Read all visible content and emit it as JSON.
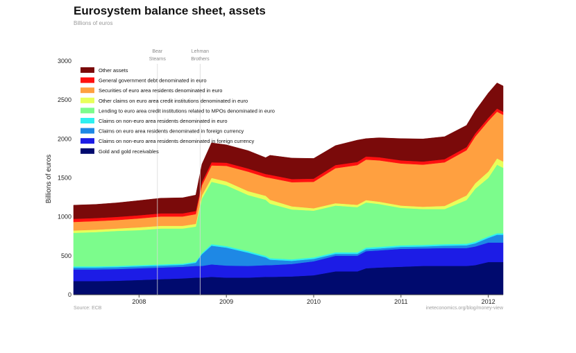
{
  "title": "Eurosystem balance sheet, assets",
  "subtitle": "Billions of euros",
  "source": "Source: ECB",
  "credit": "ineteconomics.org/blog/money-view",
  "chart_data": {
    "type": "area",
    "stacked": true,
    "ylabel": "Billions of euros",
    "ylim": [
      0,
      3000
    ],
    "yticks": [
      0,
      500,
      1000,
      1500,
      2000,
      2500,
      3000
    ],
    "xlim": [
      2007.25,
      2012.17
    ],
    "xticks": [
      2008,
      2009,
      2010,
      2011,
      2012
    ],
    "xtick_labels": [
      "2008",
      "2009",
      "2010",
      "2011",
      "2012"
    ],
    "legend_position": "top-left",
    "annotations": [
      {
        "text": [
          "Bear",
          "Stearns"
        ],
        "x": 2008.21
      },
      {
        "text": [
          "Lehman",
          "Brothers"
        ],
        "x": 2008.7
      }
    ],
    "x": [
      2007.25,
      2007.5,
      2007.75,
      2008.0,
      2008.25,
      2008.5,
      2008.65,
      2008.72,
      2008.83,
      2009.0,
      2009.25,
      2009.45,
      2009.5,
      2009.75,
      2010.0,
      2010.25,
      2010.5,
      2010.6,
      2010.75,
      2011.0,
      2011.25,
      2011.5,
      2011.75,
      2011.85,
      2012.0,
      2012.1,
      2012.17
    ],
    "series": [
      {
        "name": "Gold and gold receivables",
        "color": "#000a6e",
        "values": [
          175,
          175,
          180,
          190,
          200,
          210,
          220,
          220,
          230,
          220,
          220,
          230,
          230,
          235,
          250,
          300,
          300,
          340,
          350,
          360,
          370,
          370,
          370,
          380,
          420,
          420,
          420
        ]
      },
      {
        "name": "Claims on non-euro area residents denominated in foreign currency",
        "color": "#1c1ce6",
        "values": [
          150,
          150,
          150,
          150,
          150,
          150,
          150,
          150,
          160,
          155,
          150,
          150,
          150,
          160,
          180,
          200,
          200,
          220,
          220,
          230,
          225,
          230,
          230,
          240,
          250,
          250,
          250
        ]
      },
      {
        "name": "Claims on euro area residents denominated in foreign currency",
        "color": "#1e88e5",
        "values": [
          25,
          25,
          25,
          25,
          25,
          25,
          40,
          150,
          240,
          230,
          170,
          100,
          70,
          40,
          30,
          25,
          25,
          25,
          25,
          25,
          25,
          30,
          35,
          40,
          60,
          100,
          100
        ]
      },
      {
        "name": "Claims on non-euro area residents denominated in euro",
        "color": "#2ef0f0",
        "values": [
          15,
          15,
          15,
          15,
          15,
          15,
          15,
          15,
          20,
          20,
          20,
          20,
          20,
          20,
          20,
          20,
          20,
          20,
          20,
          20,
          20,
          20,
          20,
          20,
          20,
          20,
          20
        ]
      },
      {
        "name": "Lending to euro area credit institutions related to MPOs denominated in euro",
        "color": "#7cfc8c",
        "values": [
          430,
          440,
          450,
          450,
          460,
          450,
          450,
          700,
          800,
          780,
          720,
          720,
          700,
          640,
          600,
          600,
          580,
          580,
          550,
          480,
          460,
          450,
          560,
          680,
          750,
          880,
          840
        ]
      },
      {
        "name": "Other claims on euro area credit institutions denominated in euro",
        "color": "#e8ff5a",
        "values": [
          30,
          30,
          30,
          35,
          35,
          35,
          35,
          40,
          50,
          50,
          50,
          50,
          50,
          40,
          30,
          30,
          30,
          30,
          30,
          30,
          30,
          40,
          60,
          70,
          80,
          80,
          80
        ]
      },
      {
        "name": "Securities of euro area residents denominated in euro",
        "color": "#ffa040",
        "values": [
          110,
          110,
          110,
          115,
          120,
          120,
          125,
          130,
          160,
          200,
          250,
          240,
          280,
          310,
          340,
          450,
          510,
          520,
          530,
          540,
          540,
          560,
          580,
          600,
          650,
          600,
          600
        ]
      },
      {
        "name": "General government debt denominated in euro",
        "color": "#ff1010",
        "values": [
          40,
          40,
          40,
          40,
          40,
          40,
          40,
          40,
          40,
          40,
          40,
          40,
          40,
          40,
          40,
          40,
          40,
          40,
          40,
          40,
          40,
          40,
          40,
          40,
          40,
          40,
          40
        ]
      },
      {
        "name": "Other assets",
        "color": "#7a0a0a",
        "values": [
          175,
          175,
          180,
          190,
          195,
          200,
          205,
          230,
          250,
          230,
          230,
          210,
          250,
          270,
          260,
          250,
          280,
          230,
          250,
          280,
          290,
          290,
          280,
          290,
          320,
          330,
          330
        ]
      }
    ]
  }
}
